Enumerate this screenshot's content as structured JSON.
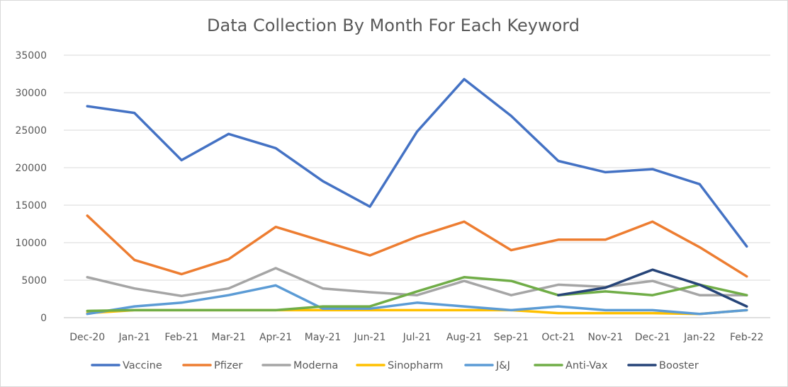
{
  "chart_data": {
    "type": "line",
    "title": "Data Collection By Month For Each Keyword",
    "xlabel": "",
    "ylabel": "",
    "categories": [
      "Dec-20",
      "Jan-21",
      "Feb-21",
      "Mar-21",
      "Apr-21",
      "May-21",
      "Jun-21",
      "Jul-21",
      "Aug-21",
      "Sep-21",
      "Oct-21",
      "Nov-21",
      "Dec-21",
      "Jan-22",
      "Feb-22"
    ],
    "ylim": [
      0,
      35000
    ],
    "yticks": [
      0,
      5000,
      10000,
      15000,
      20000,
      25000,
      30000,
      35000
    ],
    "grid": true,
    "legend_position": "bottom",
    "series": [
      {
        "name": "Vaccine",
        "color": "#4472c4",
        "values": [
          28200,
          27300,
          21000,
          24500,
          22600,
          18200,
          14800,
          24800,
          31800,
          26900,
          20900,
          19400,
          19800,
          17800,
          9500
        ]
      },
      {
        "name": "Pfizer",
        "color": "#ed7d31",
        "values": [
          13600,
          7700,
          5800,
          7800,
          12100,
          10200,
          8300,
          10800,
          12800,
          9000,
          10400,
          10400,
          12800,
          9400,
          5500
        ]
      },
      {
        "name": "Moderna",
        "color": "#a5a5a5",
        "values": [
          5400,
          3900,
          2900,
          3900,
          6600,
          3900,
          3400,
          3000,
          4900,
          3000,
          4400,
          4100,
          4900,
          3000,
          3000
        ]
      },
      {
        "name": "Sinopharm",
        "color": "#ffc000",
        "values": [
          600,
          1000,
          1000,
          1000,
          1000,
          1000,
          1000,
          1000,
          1000,
          1000,
          600,
          600,
          600,
          500,
          1000
        ]
      },
      {
        "name": "J&J",
        "color": "#5b9bd5",
        "values": [
          500,
          1500,
          2000,
          3000,
          4300,
          1200,
          1200,
          2000,
          1500,
          1000,
          1500,
          1000,
          1000,
          500,
          1000
        ]
      },
      {
        "name": "Anti-Vax",
        "color": "#70ad47",
        "values": [
          900,
          1000,
          1000,
          1000,
          1000,
          1500,
          1500,
          3500,
          5400,
          4900,
          3000,
          3500,
          3000,
          4400,
          3000
        ]
      },
      {
        "name": "Booster",
        "color": "#264478",
        "values": [
          null,
          null,
          null,
          null,
          null,
          null,
          null,
          null,
          null,
          null,
          3000,
          4000,
          6400,
          4400,
          1500
        ]
      }
    ]
  }
}
